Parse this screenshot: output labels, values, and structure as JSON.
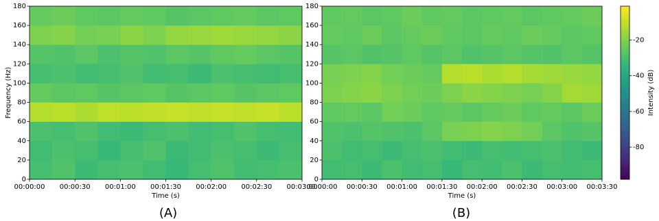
{
  "chart_data": [
    {
      "type": "heatmap",
      "caption": "(A)",
      "x_label": "Time (s)",
      "y_label": "Frequency (Hz)",
      "xlim": [
        0,
        180
      ],
      "ylim": [
        0,
        180
      ],
      "xticks": [
        {
          "value": 0,
          "label": "00:00:00"
        },
        {
          "value": 30,
          "label": "00:00:30"
        },
        {
          "value": 60,
          "label": "00:01:00"
        },
        {
          "value": 90,
          "label": "00:01:30"
        },
        {
          "value": 120,
          "label": "00:02:00"
        },
        {
          "value": 150,
          "label": "00:02:30"
        },
        {
          "value": 180,
          "label": "00:03:00"
        }
      ],
      "yticks": [
        0,
        20,
        40,
        60,
        80,
        100,
        120,
        140,
        160,
        180
      ],
      "x_bins": [
        0,
        15,
        30,
        45,
        60,
        75,
        90,
        105,
        120,
        135,
        150,
        165,
        180
      ],
      "y_bins": [
        0,
        20,
        40,
        60,
        80,
        100,
        120,
        140,
        160,
        180
      ],
      "z": [
        [
          -30,
          -28,
          -32,
          -30,
          -29,
          -31,
          -33,
          -30,
          -28,
          -31,
          -30,
          -29
        ],
        [
          -31,
          -29,
          -30,
          -33,
          -30,
          -28,
          -32,
          -31,
          -29,
          -30,
          -32,
          -30
        ],
        [
          -29,
          -30,
          -28,
          -31,
          -32,
          -30,
          -29,
          -31,
          -30,
          -28,
          -30,
          -31
        ],
        [
          -12,
          -11,
          -13,
          -10,
          -11,
          -10,
          -9,
          -10,
          -9,
          -10,
          -9,
          -11
        ],
        [
          -24,
          -26,
          -25,
          -27,
          -26,
          -25,
          -27,
          -26,
          -25,
          -27,
          -26,
          -25
        ],
        [
          -30,
          -29,
          -31,
          -30,
          -28,
          -31,
          -30,
          -32,
          -29,
          -30,
          -31,
          -30
        ],
        [
          -27,
          -28,
          -26,
          -29,
          -27,
          -28,
          -26,
          -27,
          -25,
          -24,
          -26,
          -27
        ],
        [
          -20,
          -19,
          -22,
          -21,
          -18,
          -20,
          -17,
          -16,
          -15,
          -16,
          -17,
          -18
        ],
        [
          -24,
          -23,
          -25,
          -26,
          -24,
          -25,
          -27,
          -26,
          -25,
          -24,
          -26,
          -25
        ]
      ]
    },
    {
      "type": "heatmap",
      "caption": "(B)",
      "x_label": "Time (s)",
      "xlim": [
        0,
        210
      ],
      "ylim": [
        0,
        180
      ],
      "xticks": [
        {
          "value": 0,
          "label": "00:00:00"
        },
        {
          "value": 30,
          "label": "00:00:30"
        },
        {
          "value": 60,
          "label": "00:01:00"
        },
        {
          "value": 90,
          "label": "00:01:30"
        },
        {
          "value": 120,
          "label": "00:02:00"
        },
        {
          "value": 150,
          "label": "00:02:30"
        },
        {
          "value": 180,
          "label": "00:03:00"
        },
        {
          "value": 210,
          "label": "00:03:30"
        }
      ],
      "yticks": [
        0,
        20,
        40,
        60,
        80,
        100,
        120,
        140,
        160,
        180
      ],
      "x_bins": [
        0,
        15,
        30,
        45,
        60,
        75,
        90,
        105,
        120,
        135,
        150,
        165,
        180,
        195,
        210
      ],
      "y_bins": [
        0,
        20,
        40,
        60,
        80,
        100,
        120,
        140,
        160,
        180
      ],
      "z": [
        [
          -31,
          -30,
          -32,
          -29,
          -31,
          -30,
          -33,
          -30,
          -31,
          -29,
          -32,
          -30,
          -31,
          -30
        ],
        [
          -29,
          -31,
          -30,
          -32,
          -30,
          -29,
          -31,
          -32,
          -30,
          -31,
          -30,
          -29,
          -31,
          -32
        ],
        [
          -28,
          -29,
          -27,
          -28,
          -29,
          -26,
          -21,
          -20,
          -19,
          -20,
          -22,
          -26,
          -28,
          -27
        ],
        [
          -25,
          -24,
          -26,
          -22,
          -23,
          -25,
          -24,
          -26,
          -24,
          -23,
          -25,
          -24,
          -26,
          -23
        ],
        [
          -20,
          -19,
          -18,
          -20,
          -22,
          -23,
          -20,
          -18,
          -19,
          -20,
          -21,
          -19,
          -14,
          -15
        ],
        [
          -21,
          -20,
          -19,
          -22,
          -23,
          -24,
          -12,
          -11,
          -13,
          -12,
          -14,
          -15,
          -16,
          -17
        ],
        [
          -27,
          -26,
          -28,
          -27,
          -25,
          -27,
          -26,
          -28,
          -27,
          -26,
          -27,
          -28,
          -26,
          -27
        ],
        [
          -24,
          -25,
          -23,
          -26,
          -24,
          -23,
          -25,
          -26,
          -24,
          -25,
          -23,
          -24,
          -26,
          -25
        ],
        [
          -25,
          -24,
          -26,
          -25,
          -23,
          -25,
          -24,
          -26,
          -25,
          -24,
          -26,
          -25,
          -24,
          -23
        ]
      ],
      "colorbar": {
        "label": "Intensity (dB)",
        "colormap": "viridis",
        "lim": [
          -98,
          -1
        ],
        "ticks": [
          -20,
          -40,
          -60,
          -80
        ]
      }
    }
  ]
}
